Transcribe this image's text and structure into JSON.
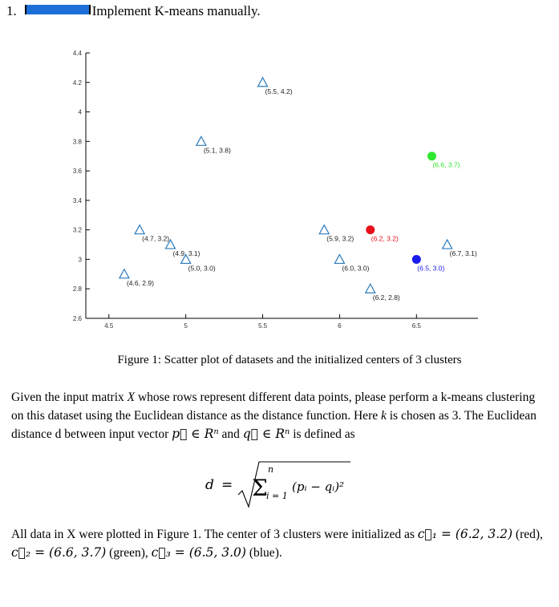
{
  "heading": {
    "number": "1.",
    "title": "Implement K-means manually."
  },
  "chart_data": {
    "type": "scatter",
    "title": "",
    "xlabel": "",
    "ylabel": "",
    "xlim": [
      4.35,
      6.9
    ],
    "ylim": [
      2.6,
      4.4
    ],
    "x_ticks": [
      "4.5",
      "5",
      "5.5",
      "6",
      "6.5"
    ],
    "x_tick_values": [
      4.5,
      5,
      5.5,
      6,
      6.5
    ],
    "y_ticks": [
      "2.6",
      "2.8",
      "3",
      "3.2",
      "3.4",
      "3.6",
      "3.8",
      "4",
      "4.2",
      "4.4"
    ],
    "y_tick_values": [
      2.6,
      2.8,
      3.0,
      3.2,
      3.4,
      3.6,
      3.8,
      4.0,
      4.2,
      4.4
    ],
    "grid": false,
    "points": [
      {
        "x": 5.5,
        "y": 4.2,
        "label": "(5.5, 4.2)"
      },
      {
        "x": 5.1,
        "y": 3.8,
        "label": "(5.1, 3.8)"
      },
      {
        "x": 4.7,
        "y": 3.2,
        "label": "(4.7, 3.2)"
      },
      {
        "x": 4.9,
        "y": 3.1,
        "label": "(4.9, 3.1)"
      },
      {
        "x": 5.0,
        "y": 3.0,
        "label": "(5.0, 3.0)"
      },
      {
        "x": 4.6,
        "y": 2.9,
        "label": "(4.6, 2.9)"
      },
      {
        "x": 5.9,
        "y": 3.2,
        "label": "(5.9, 3.2)"
      },
      {
        "x": 6.0,
        "y": 3.0,
        "label": "(6.0, 3.0)"
      },
      {
        "x": 6.2,
        "y": 2.8,
        "label": "(6.2, 2.8)"
      },
      {
        "x": 6.7,
        "y": 3.1,
        "label": "(6.7, 3.1)"
      }
    ],
    "centers": [
      {
        "x": 6.2,
        "y": 3.2,
        "label": "(6.2, 3.2)",
        "color": "#e8101a"
      },
      {
        "x": 6.6,
        "y": 3.7,
        "label": "(6.6, 3.7)",
        "color": "#2fe82f"
      },
      {
        "x": 6.5,
        "y": 3.0,
        "label": "(6.5, 3.0)",
        "color": "#1a1aee"
      }
    ],
    "marker_color": "#2c7bbd"
  },
  "caption": "Figure 1: Scatter plot of datasets and the initialized centers of 3 clusters",
  "para1": {
    "a": "Given the input matrix ",
    "X": "X",
    "b": " whose rows represent different data points, please perform a k-means clustering on this dataset using the Euclidean distance as the distance function. Here ",
    "k": "k",
    "c": " is chosen as 3. The Euclidean distance d between input vector ",
    "p_in": "p⃗ ∈ Rⁿ",
    "and": " and ",
    "q_in": "q⃗ ∈ Rⁿ",
    "d": " is defined as"
  },
  "formula": {
    "lhs": "d",
    "eq": "=",
    "sigma": "Σ",
    "upper": "n",
    "lower": "i = 1",
    "term": "(pᵢ − qᵢ)²"
  },
  "para2": {
    "a": "All data in X were plotted in Figure 1. The center of 3 clusters were initialized as ",
    "c1": "c⃗₁ = (6.2, 3.2)",
    "b": " (red), ",
    "c2": "c⃗₂ = (6.6, 3.7)",
    "c": " (green), ",
    "c3": "c⃗₃ = (6.5, 3.0)",
    "d": " (blue)."
  }
}
